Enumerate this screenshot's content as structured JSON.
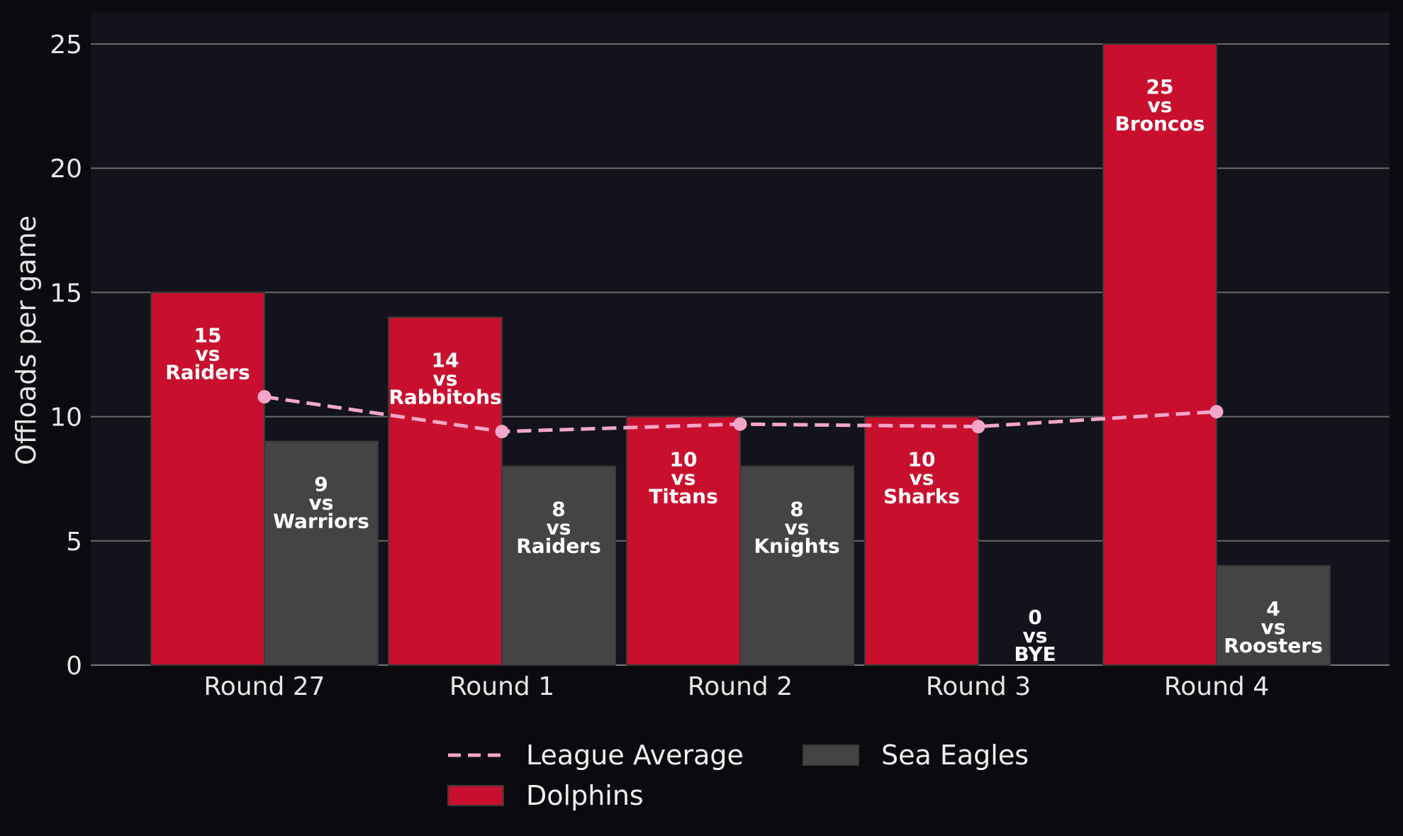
{
  "chart_data": {
    "type": "bar",
    "ylabel": "Offloads per game",
    "ylim": [
      0,
      26.2
    ],
    "yticks": [
      0,
      5,
      10,
      15,
      20,
      25
    ],
    "grid": true,
    "categories": [
      "Round 27",
      "Round 1",
      "Round 2",
      "Round 3",
      "Round 4"
    ],
    "series": [
      {
        "name": "Dolphins",
        "kind": "bar",
        "color": "#c8102e",
        "values": [
          15,
          14,
          10,
          10,
          25
        ],
        "opponents": [
          "Raiders",
          "Rabbitohs",
          "Titans",
          "Sharks",
          "Broncos"
        ]
      },
      {
        "name": "Sea Eagles",
        "kind": "bar",
        "color": "#444444",
        "values": [
          9,
          8,
          8,
          0,
          4
        ],
        "opponents": [
          "Warriors",
          "Raiders",
          "Knights",
          "BYE",
          "Roosters"
        ]
      },
      {
        "name": "League Average",
        "kind": "line",
        "style": "dashed",
        "color": "#f4a6c8",
        "values": [
          10.8,
          9.4,
          9.7,
          9.6,
          10.2
        ]
      }
    ],
    "vs_word": "vs",
    "legend_position": "bottom-center"
  }
}
